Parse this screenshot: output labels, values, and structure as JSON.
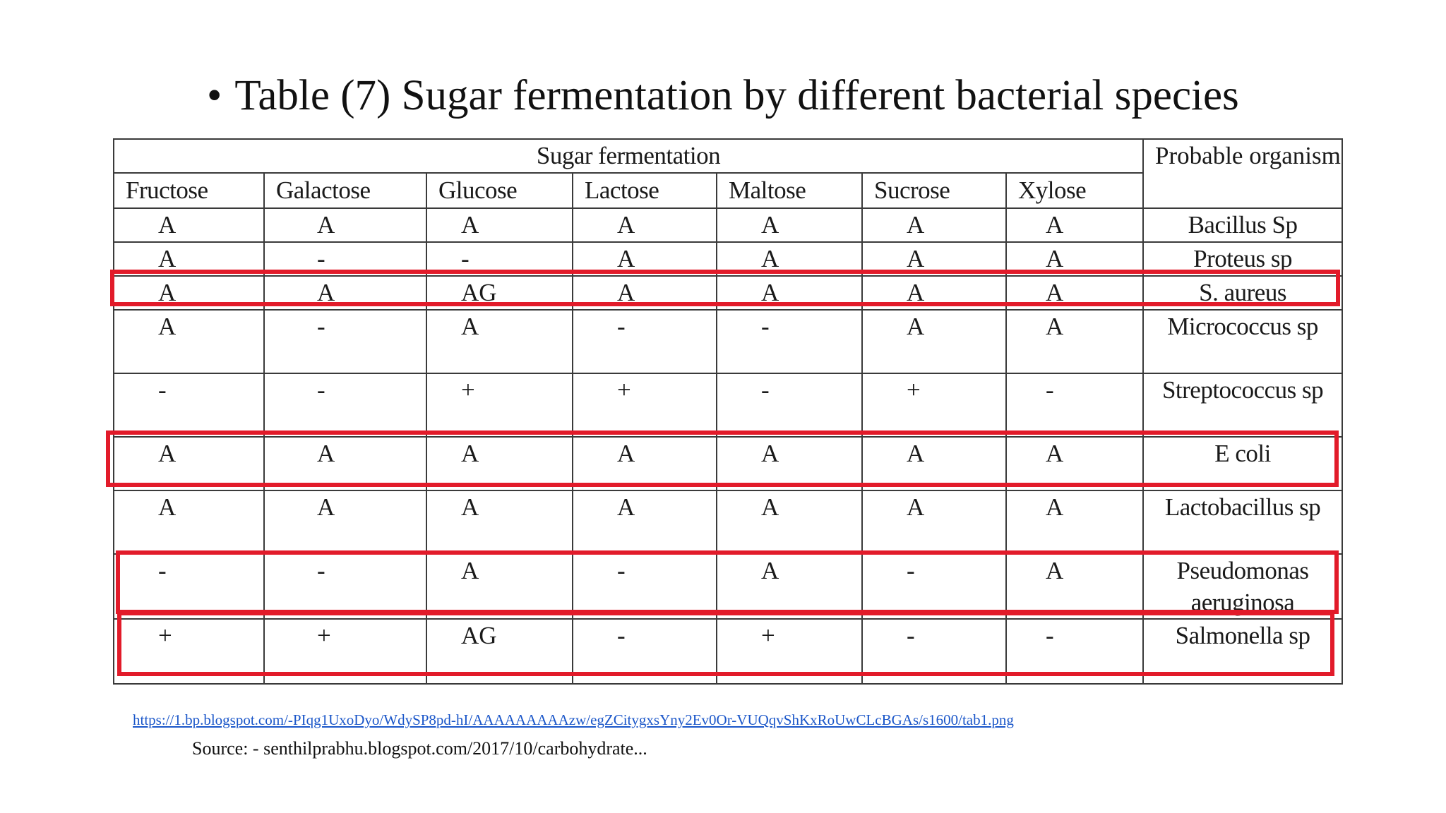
{
  "slide": {
    "bullet": "•",
    "title": "Table (7) Sugar fermentation by different bacterial species"
  },
  "table": {
    "group_header": "Sugar fermentation",
    "organism_header": "Probable organism",
    "columns": [
      "Fructose",
      "Galactose",
      "Glucose",
      "Lactose",
      "Maltose",
      "Sucrose",
      "Xylose"
    ],
    "rows": [
      {
        "values": [
          "A",
          "A",
          "A",
          "A",
          "A",
          "A",
          "A"
        ],
        "organism": "Bacillus Sp"
      },
      {
        "values": [
          "A",
          "-",
          "-",
          "A",
          "A",
          "A",
          "A"
        ],
        "organism": "Proteus sp"
      },
      {
        "values": [
          "A",
          "A",
          "AG",
          "A",
          "A",
          "A",
          "A"
        ],
        "organism": "S. aureus"
      },
      {
        "values": [
          "A",
          "-",
          "A",
          "-",
          "-",
          "A",
          "A"
        ],
        "organism": "Micrococcus sp"
      },
      {
        "values": [
          "-",
          "-",
          "+",
          "+",
          "-",
          "+",
          "-"
        ],
        "organism": "Streptococcus sp"
      },
      {
        "values": [
          "A",
          "A",
          "A",
          "A",
          "A",
          "A",
          "A"
        ],
        "organism": "E coli"
      },
      {
        "values": [
          "A",
          "A",
          "A",
          "A",
          "A",
          "A",
          "A"
        ],
        "organism": "Lactobacillus sp"
      },
      {
        "values": [
          "-",
          "-",
          "A",
          "-",
          "A",
          "-",
          "A"
        ],
        "organism": "Pseudomonas aeruginosa"
      },
      {
        "values": [
          "+",
          "+",
          "AG",
          "-",
          "+",
          "-",
          "-"
        ],
        "organism": "Salmonella sp"
      }
    ],
    "highlighted_rows": [
      "S. aureus",
      "E coli",
      "Pseudomonas aeruginosa",
      "Salmonella sp"
    ],
    "highlight_color": "#e21b2a"
  },
  "footer": {
    "image_link": "https://1.bp.blogspot.com/-PIqg1UxoDyo/WdySP8pd-hI/AAAAAAAAAzw/egZCitygxsYny2Ev0Or-VUQqvShKxRoUwCLcBGAs/s1600/tab1.png",
    "source": "Source: - senthilprabhu.blogspot.com/2017/10/carbohydrate..."
  }
}
